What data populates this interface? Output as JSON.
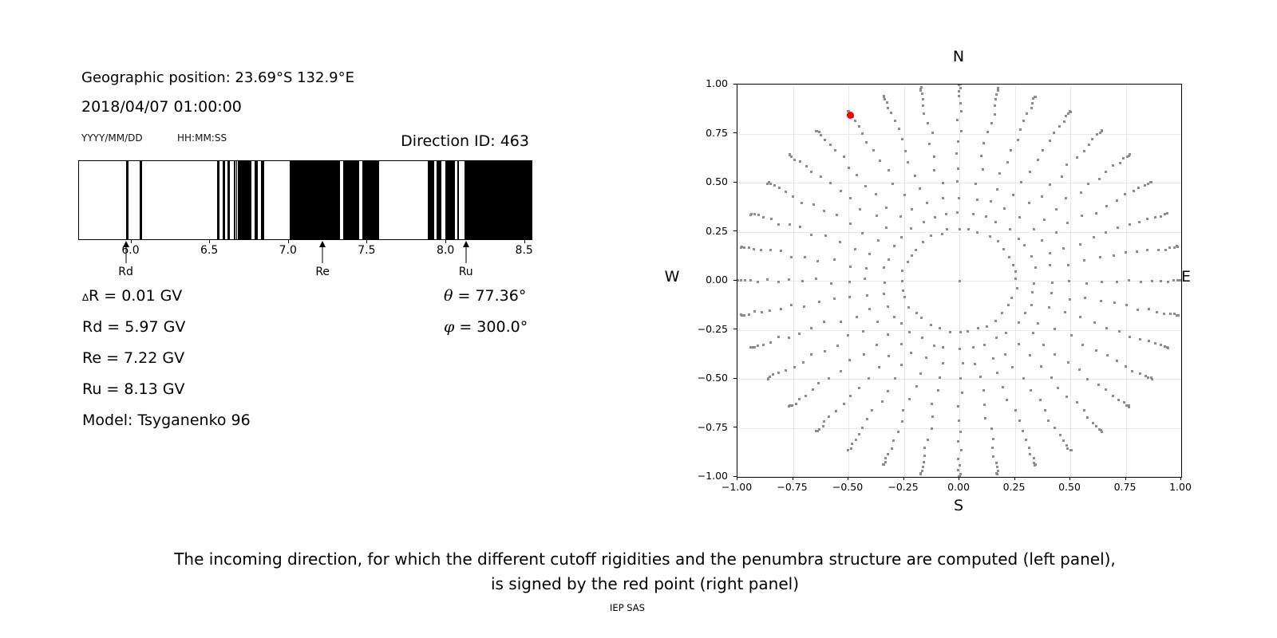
{
  "left_panel": {
    "geo_position": "Geographic position: 23.69°S 132.9°E",
    "datetime": "2018/04/07 01:00:00",
    "date_format_label": "YYYY/MM/DD",
    "time_format_label": "HH:MM:SS",
    "direction_id": "Direction ID: 463",
    "parameters": [
      "∆R = 0.01 GV",
      "Rd = 5.97 GV",
      "Re = 7.22 GV",
      "Ru = 8.13 GV",
      "Model: Tsyganenko 96"
    ],
    "angles": [
      "θ = 77.36°",
      "φ = 300.0°"
    ]
  },
  "chart_data": [
    {
      "type": "bar",
      "name": "penumbra-barcode",
      "description": "Cosmic-ray penumbra structure: black bands = allowed rigidity intervals (GV)",
      "xlim": [
        5.668,
        8.542
      ],
      "xticks": [
        6.0,
        6.5,
        7.0,
        7.5,
        8.0,
        8.5
      ],
      "bar_color": "#000000",
      "allowed_intervals_gv": [
        [
          5.967,
          5.984
        ],
        [
          6.052,
          6.07
        ],
        [
          6.543,
          6.561
        ],
        [
          6.578,
          6.597
        ],
        [
          6.612,
          6.627
        ],
        [
          6.649,
          6.659
        ],
        [
          6.664,
          6.672
        ],
        [
          6.677,
          6.764
        ],
        [
          6.781,
          6.803
        ],
        [
          6.822,
          6.842
        ],
        [
          7.004,
          7.325
        ],
        [
          7.346,
          7.448
        ],
        [
          7.468,
          7.575
        ],
        [
          7.884,
          7.924
        ],
        [
          7.941,
          7.972
        ],
        [
          7.992,
          8.056
        ],
        [
          8.071,
          8.081
        ],
        [
          8.117,
          8.542
        ]
      ],
      "markers": [
        {
          "label": "Rd",
          "gv": 5.97
        },
        {
          "label": "Re",
          "gv": 7.22
        },
        {
          "label": "Ru",
          "gv": 8.13
        }
      ]
    },
    {
      "type": "scatter",
      "name": "incoming-direction-map",
      "xlim": [
        -1.0,
        1.0
      ],
      "ylim": [
        -1.0,
        1.0
      ],
      "xticks": [
        -1.0,
        -0.75,
        -0.5,
        -0.25,
        0.0,
        0.25,
        0.5,
        0.75,
        1.0
      ],
      "yticks": [
        1.0,
        0.75,
        0.5,
        0.25,
        0.0,
        -0.25,
        -0.5,
        -0.75,
        -1.0
      ],
      "compass_labels": {
        "top": "N",
        "bottom": "S",
        "left": "W",
        "right": "E"
      },
      "grid_definition": {
        "azimuth_step_deg": 10,
        "zenith_min_deg": 15,
        "zenith_max_deg": 90,
        "zenith_step_deg": 5,
        "radial_projection": "sin(zenith)",
        "includes_center_point": true
      },
      "dot_color": "#8c8c8c",
      "grid_color": "#e8e8e8",
      "red_point": {
        "x": -0.491,
        "y": 0.844,
        "theta_deg": 77.36,
        "phi_deg": 300.0,
        "color": "#ff0000"
      }
    }
  ],
  "caption": {
    "line1": "The incoming direction, for which the different cutoff rigidities and the penumbra structure are computed (left panel),",
    "line2": "is signed by the red point (right panel)",
    "credit": "IEP SAS"
  }
}
